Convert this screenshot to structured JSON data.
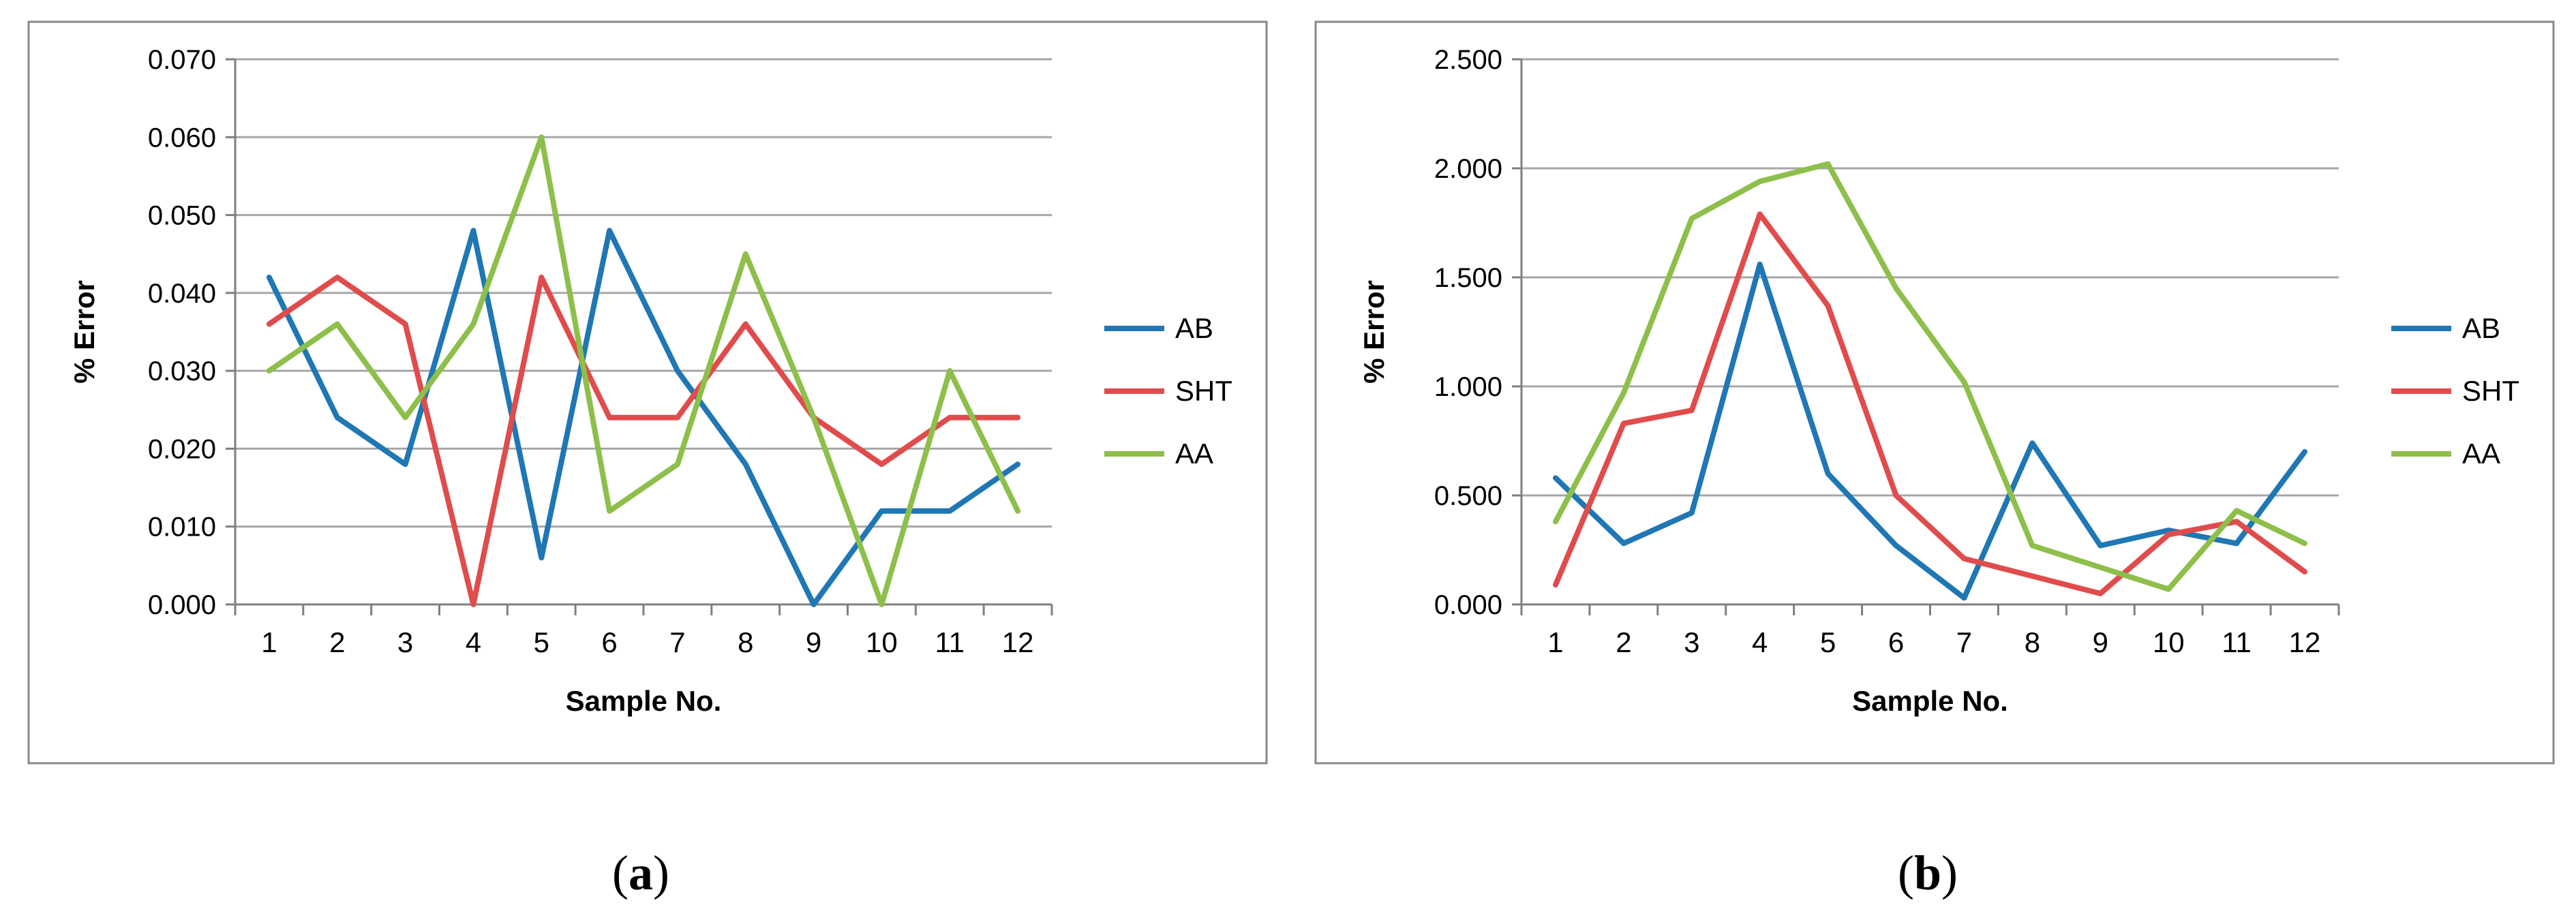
{
  "chart_data": [
    {
      "type": "line",
      "panel_label": "a",
      "xlabel": "Sample No.",
      "ylabel": "% Error",
      "ylim": [
        0,
        0.07
      ],
      "ytick_step": 0.01,
      "ytick_decimals": 3,
      "grid": "horizontal",
      "legend_position": "right",
      "categories": [
        "1",
        "2",
        "3",
        "4",
        "5",
        "6",
        "7",
        "8",
        "9",
        "10",
        "11",
        "12"
      ],
      "series": [
        {
          "name": "AB",
          "color": "#1f77b4",
          "values": [
            0.042,
            0.024,
            0.018,
            0.048,
            0.006,
            0.048,
            0.03,
            0.018,
            0.0,
            0.012,
            0.012,
            0.018
          ]
        },
        {
          "name": "SHT",
          "color": "#e04c4c",
          "values": [
            0.036,
            0.042,
            0.036,
            0.0,
            0.042,
            0.024,
            0.024,
            0.036,
            0.024,
            0.018,
            0.024,
            0.024
          ]
        },
        {
          "name": "AA",
          "color": "#8dbf4a",
          "values": [
            0.03,
            0.036,
            0.024,
            0.036,
            0.06,
            0.012,
            0.018,
            0.045,
            0.024,
            0.0,
            0.03,
            0.012
          ]
        }
      ]
    },
    {
      "type": "line",
      "panel_label": "b",
      "xlabel": "Sample No.",
      "ylabel": "% Error",
      "ylim": [
        0,
        2.5
      ],
      "ytick_step": 0.5,
      "ytick_decimals": 3,
      "grid": "horizontal",
      "legend_position": "right",
      "categories": [
        "1",
        "2",
        "3",
        "4",
        "5",
        "6",
        "7",
        "8",
        "9",
        "10",
        "11",
        "12"
      ],
      "series": [
        {
          "name": "AB",
          "color": "#1f77b4",
          "values": [
            0.58,
            0.28,
            0.42,
            1.56,
            0.6,
            0.27,
            0.03,
            0.74,
            0.27,
            0.34,
            0.28,
            0.7
          ]
        },
        {
          "name": "SHT",
          "color": "#e04c4c",
          "values": [
            0.09,
            0.83,
            0.89,
            1.79,
            1.37,
            0.5,
            0.21,
            0.13,
            0.05,
            0.32,
            0.38,
            0.15
          ]
        },
        {
          "name": "AA",
          "color": "#8dbf4a",
          "values": [
            0.38,
            0.97,
            1.77,
            1.94,
            2.02,
            1.45,
            1.02,
            0.27,
            0.17,
            0.07,
            0.43,
            0.28
          ]
        }
      ]
    }
  ]
}
